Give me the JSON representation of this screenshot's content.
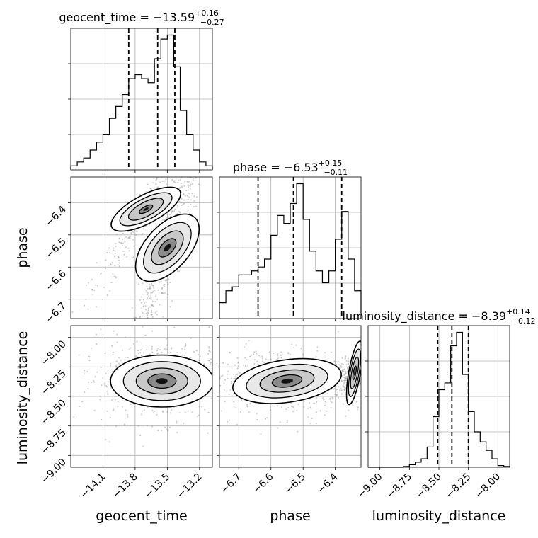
{
  "chart_data": {
    "type": "corner",
    "parameters": [
      {
        "name": "geocent_time",
        "axis_label": "geocent_time",
        "title_prefix": "geocent_time = ",
        "median": "−13.59",
        "err_plus": "+0.16",
        "err_minus": "−0.27",
        "range": [
          -14.4,
          -13.08
        ],
        "ticks": [
          "−14.1",
          "−13.8",
          "−13.5",
          "−13.2"
        ],
        "tick_values": [
          -14.1,
          -13.8,
          -13.5,
          -13.2
        ],
        "quantiles": [
          -13.86,
          -13.59,
          -13.43
        ],
        "hist_edges": [
          -14.4,
          -14.34,
          -14.28,
          -14.22,
          -14.16,
          -14.1,
          -14.04,
          -13.98,
          -13.92,
          -13.86,
          -13.8,
          -13.74,
          -13.68,
          -13.62,
          -13.56,
          -13.5,
          -13.44,
          -13.38,
          -13.32,
          -13.26,
          -13.2,
          -13.14,
          -13.08
        ],
        "hist_counts": [
          1,
          2,
          3,
          5,
          7,
          9,
          13,
          16,
          19,
          23,
          24,
          23,
          22,
          28,
          33,
          34,
          26,
          15,
          9,
          5,
          2,
          1
        ]
      },
      {
        "name": "phase",
        "axis_label": "phase",
        "title_prefix": "phase = ",
        "median": "−6.53",
        "err_plus": "+0.15",
        "err_minus": "−0.11",
        "range": [
          -6.76,
          -6.32
        ],
        "ticks": [
          "−6.7",
          "−6.6",
          "−6.5",
          "−6.4"
        ],
        "tick_values": [
          -6.7,
          -6.6,
          -6.5,
          -6.4
        ],
        "quantiles": [
          -6.64,
          -6.53,
          -6.38
        ],
        "hist_edges": [
          -6.76,
          -6.74,
          -6.72,
          -6.7,
          -6.68,
          -6.66,
          -6.64,
          -6.62,
          -6.6,
          -6.58,
          -6.56,
          -6.54,
          -6.52,
          -6.5,
          -6.48,
          -6.46,
          -6.44,
          -6.42,
          -6.4,
          -6.38,
          -6.36,
          -6.34,
          -6.32
        ],
        "hist_counts": [
          4,
          7,
          8,
          11,
          11,
          12,
          13,
          15,
          21,
          26,
          24,
          29,
          34,
          25,
          17,
          12,
          9,
          12,
          20,
          27,
          15,
          7
        ]
      },
      {
        "name": "luminosity_distance",
        "axis_label": "luminosity_distance",
        "title_prefix": "luminosity_distance = ",
        "median": "−8.39",
        "err_plus": "+0.14",
        "err_minus": "−0.12",
        "range": [
          -9.1,
          -7.9
        ],
        "ticks": [
          "−9.00",
          "−8.75",
          "−8.50",
          "−8.25",
          "−8.00"
        ],
        "tick_values": [
          -9.0,
          -8.75,
          -8.5,
          -8.25,
          -8.0
        ],
        "quantiles": [
          -8.51,
          -8.39,
          -8.25
        ],
        "hist_edges": [
          -9.1,
          -9.05,
          -9.0,
          -8.95,
          -8.9,
          -8.85,
          -8.8,
          -8.75,
          -8.7,
          -8.65,
          -8.6,
          -8.55,
          -8.5,
          -8.45,
          -8.4,
          -8.35,
          -8.3,
          -8.25,
          -8.2,
          -8.15,
          -8.1,
          -8.05,
          -8.0,
          -7.95,
          -7.9
        ],
        "hist_counts": [
          0,
          0,
          0,
          0,
          0,
          0,
          0.5,
          1.5,
          3,
          5,
          12,
          30,
          46,
          50,
          72,
          80,
          55,
          33,
          21,
          15,
          10,
          5,
          1,
          0.5
        ]
      }
    ],
    "pairs": [
      {
        "x_param": "geocent_time",
        "y_param": "phase",
        "modes": [
          {
            "cx": -13.5,
            "cy": -6.54,
            "ang_deg": 48,
            "sx": 0.19,
            "sy": 0.034,
            "weight": 1.0
          },
          {
            "cx": -13.7,
            "cy": -6.42,
            "ang_deg": 28,
            "sx": 0.18,
            "sy": 0.022,
            "weight": 0.5
          }
        ]
      },
      {
        "x_param": "geocent_time",
        "y_param": "luminosity_distance",
        "modes": [
          {
            "cx": -13.55,
            "cy": -8.37,
            "ang_deg": 0,
            "sx": 0.24,
            "sy": 0.11,
            "weight": 1.0
          }
        ]
      },
      {
        "x_param": "phase",
        "y_param": "luminosity_distance",
        "modes": [
          {
            "cx": -6.55,
            "cy": -8.37,
            "ang_deg": 8,
            "sx": 0.085,
            "sy": 0.09,
            "weight": 1.0
          },
          {
            "cx": -6.34,
            "cy": -8.3,
            "ang_deg": 80,
            "sx": 0.05,
            "sy": 0.025,
            "weight": 0.6
          }
        ]
      }
    ],
    "style": {
      "hist_color": "#000000",
      "quantile_color": "#000000",
      "contour_color": "#000000",
      "point_color": "#9a9a9a",
      "grid": true
    }
  }
}
